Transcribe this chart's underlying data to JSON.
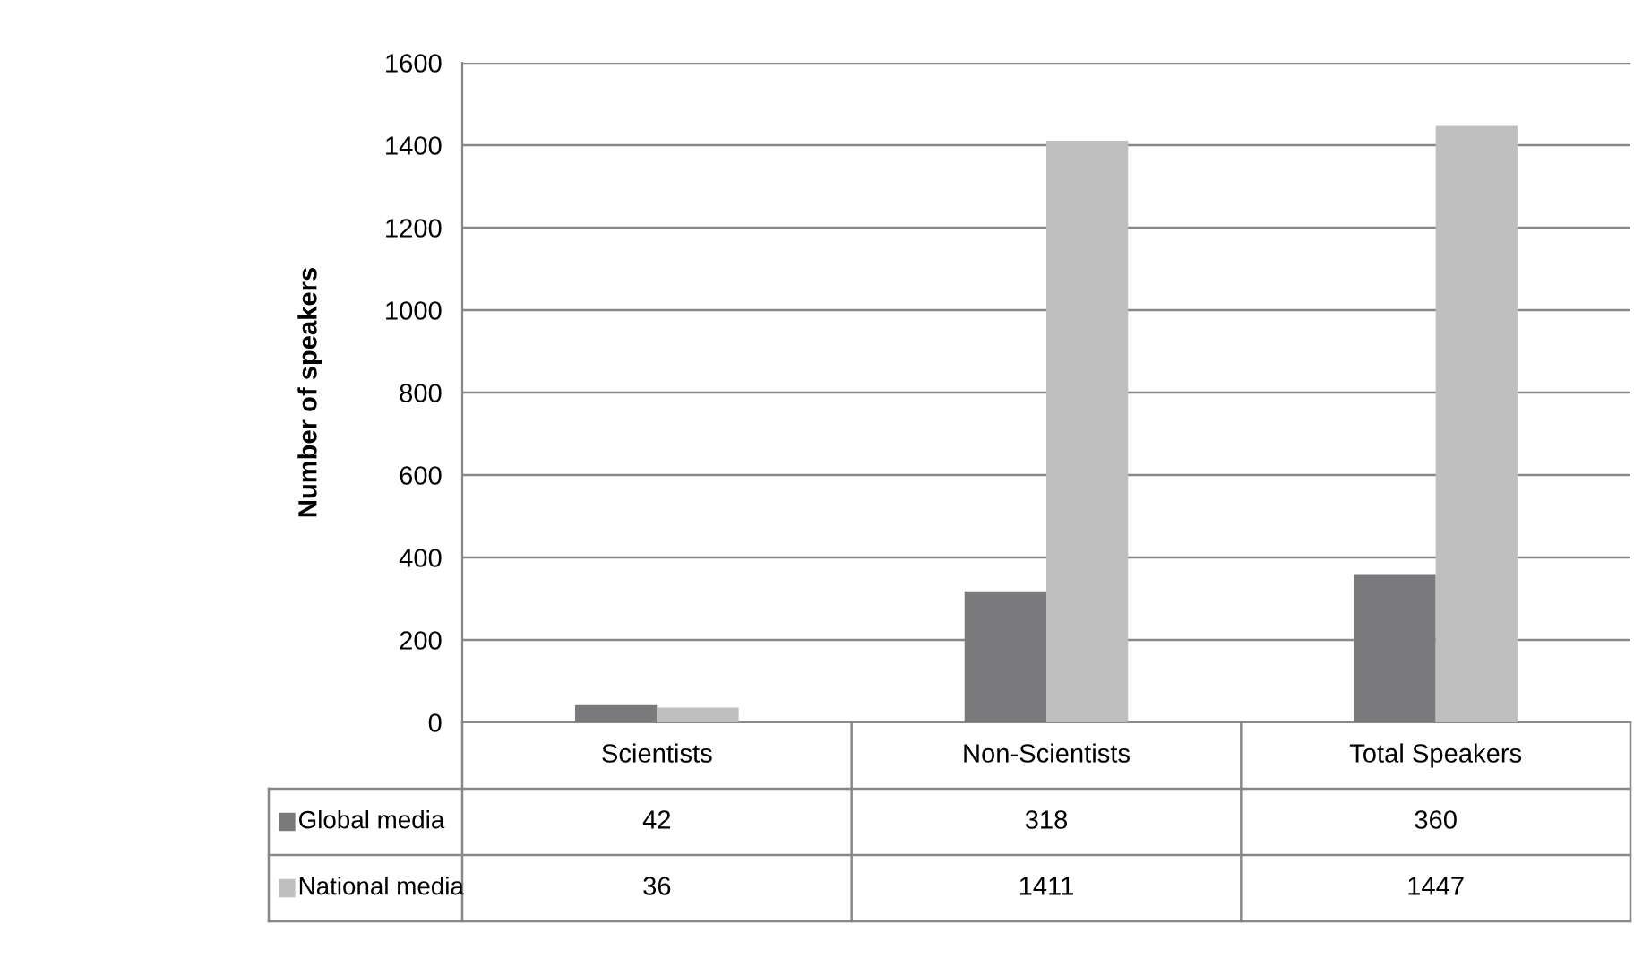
{
  "chart_data": {
    "type": "bar",
    "ylabel": "Number of speakers",
    "categories": [
      "Scientists",
      "Non-Scientists",
      "Total Speakers"
    ],
    "series": [
      {
        "name": "Global media",
        "color": "#7a7a7c",
        "values": [
          42,
          318,
          360
        ]
      },
      {
        "name": "National media",
        "color": "#bfbfbf",
        "values": [
          36,
          1411,
          1447
        ]
      }
    ],
    "ylim": [
      0,
      1600
    ],
    "yticks": [
      0,
      200,
      400,
      600,
      800,
      1000,
      1200,
      1400,
      1600
    ],
    "grid": "y",
    "legend": "bottom",
    "data_labels": true
  }
}
